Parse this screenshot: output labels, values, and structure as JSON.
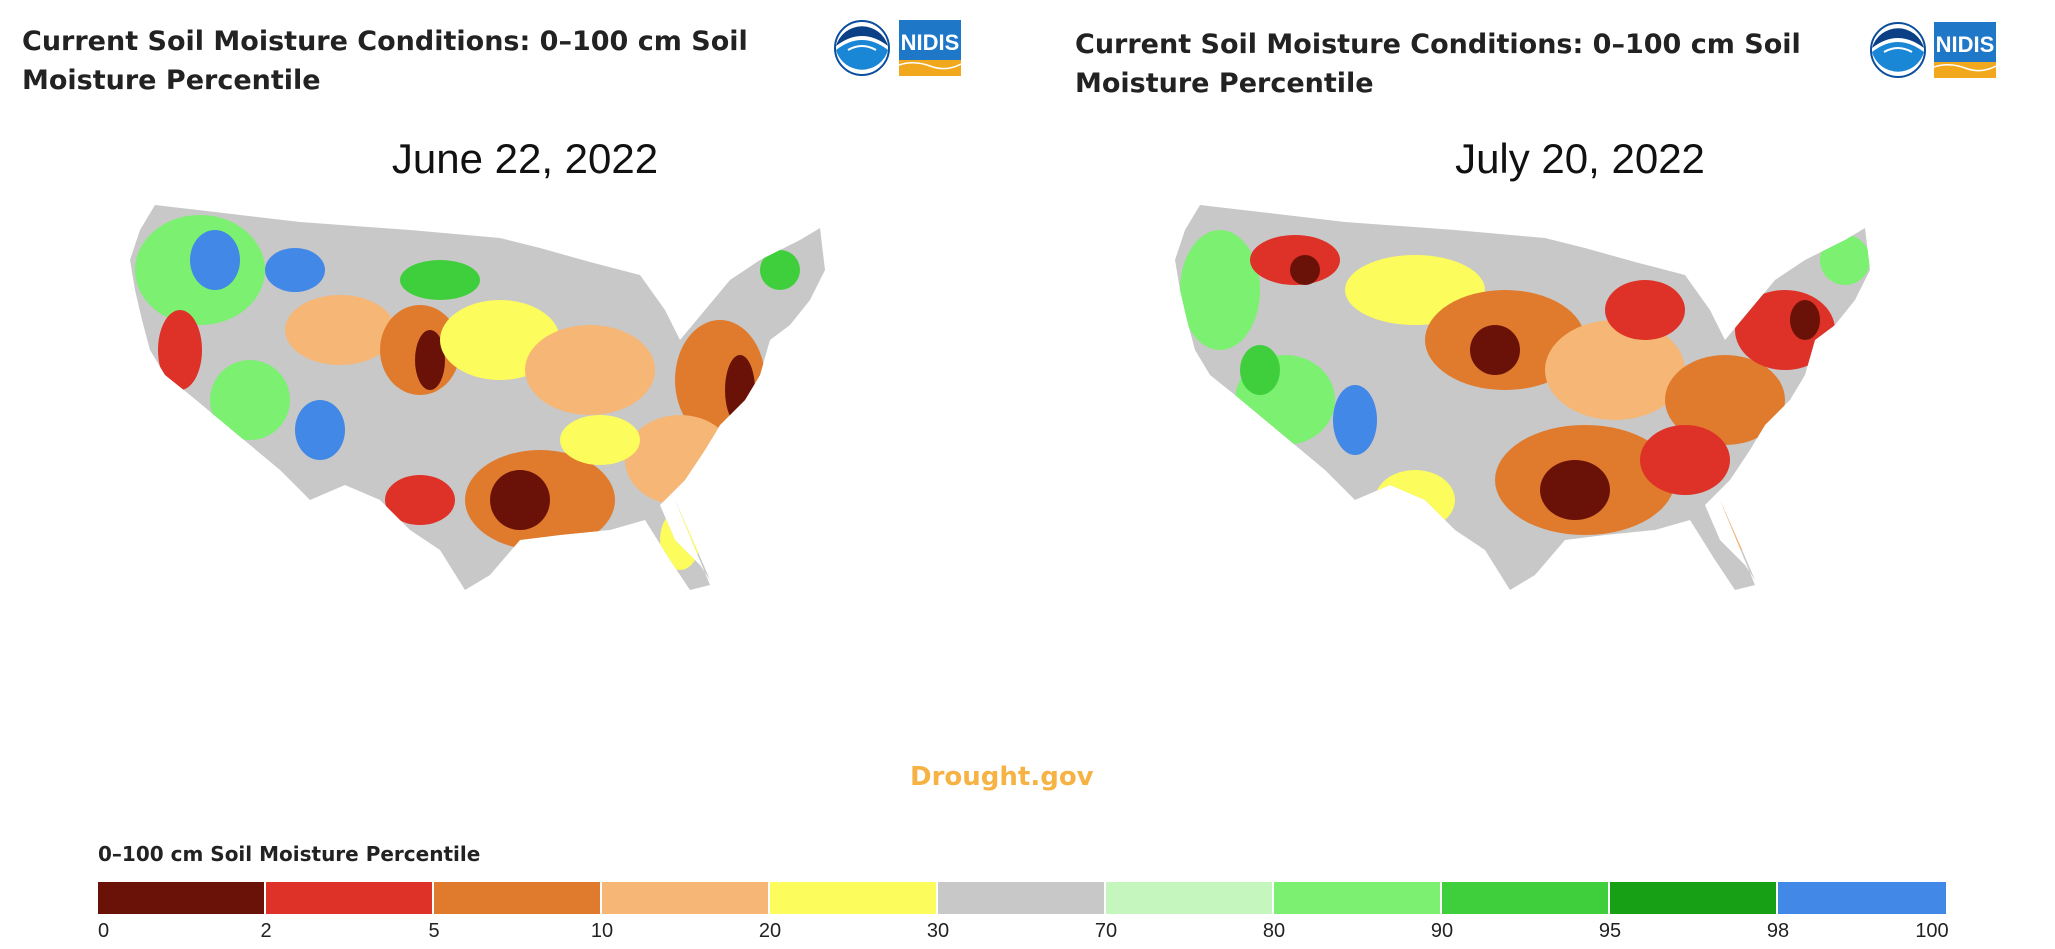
{
  "panels": [
    {
      "title_line1": "Current Soil Moisture Conditions: 0–100 cm Soil",
      "title_line2": "Moisture Percentile",
      "date": "June 22, 2022"
    },
    {
      "title_line1": "Current Soil Moisture Conditions: 0–100 cm Soil",
      "title_line2": "Moisture Percentile",
      "date": "July 20, 2022"
    }
  ],
  "logos": {
    "noaa_text": "NOAA",
    "nidis_text": "NIDIS"
  },
  "watermark": "Drought.gov",
  "legend": {
    "title": "0–100 cm Soil Moisture Percentile",
    "bins": [
      {
        "from": 0,
        "to": 2,
        "color": "#6b1208"
      },
      {
        "from": 2,
        "to": 5,
        "color": "#de3127"
      },
      {
        "from": 5,
        "to": 10,
        "color": "#e07a2c"
      },
      {
        "from": 10,
        "to": 20,
        "color": "#f6b675"
      },
      {
        "from": 20,
        "to": 30,
        "color": "#fcfc5c"
      },
      {
        "from": 30,
        "to": 70,
        "color": "#c8c8c8"
      },
      {
        "from": 70,
        "to": 80,
        "color": "#c4f6bd"
      },
      {
        "from": 80,
        "to": 90,
        "color": "#7cf071"
      },
      {
        "from": 90,
        "to": 95,
        "color": "#3fcf3c"
      },
      {
        "from": 95,
        "to": 98,
        "color": "#17a016"
      },
      {
        "from": 98,
        "to": 100,
        "color": "#4288e6"
      }
    ],
    "ticks": [
      "0",
      "2",
      "5",
      "10",
      "20",
      "30",
      "70",
      "80",
      "90",
      "95",
      "98",
      "100"
    ]
  }
}
